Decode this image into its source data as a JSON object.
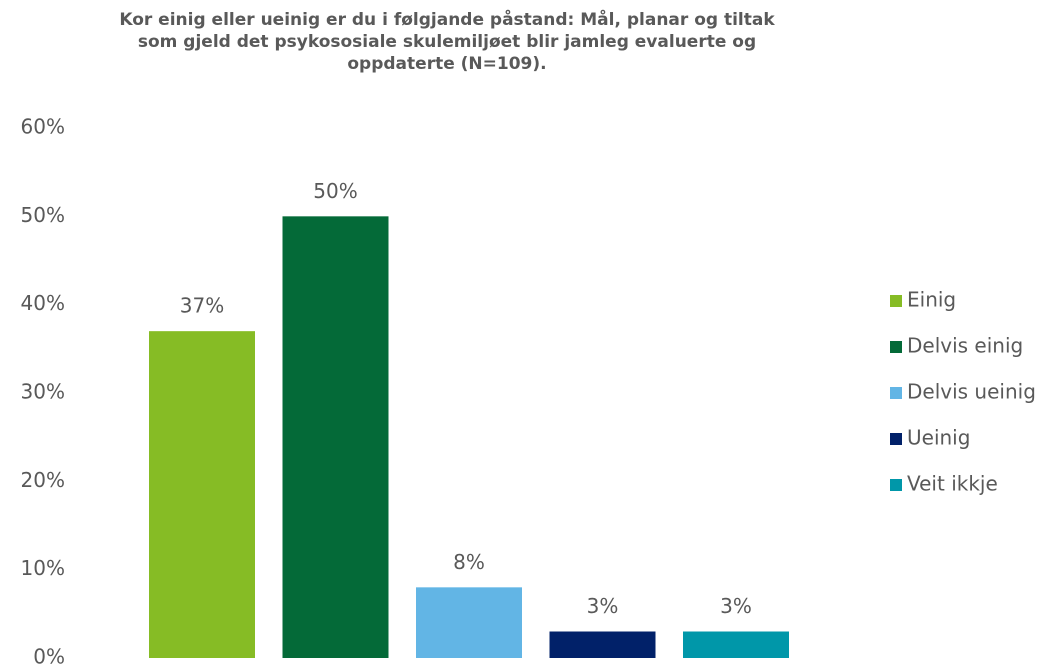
{
  "chart_data": {
    "type": "bar",
    "title": [
      "Kor einig eller ueinig er du i følgjande påstand: Mål, planar og tiltak",
      "som gjeld det psykososiale skulemiljøet blir jamleg evaluerte og",
      "oppdaterte (N=109)."
    ],
    "series": [
      {
        "name": "Einig",
        "color": "#86bc25",
        "values": [
          37
        ],
        "value_labels": [
          "37%"
        ]
      },
      {
        "name": "Delvis einig",
        "color": "#046a38",
        "values": [
          50
        ],
        "value_labels": [
          "50%"
        ]
      },
      {
        "name": "Delvis ueinig",
        "color": "#62b5e5",
        "values": [
          8
        ],
        "value_labels": [
          "8%"
        ]
      },
      {
        "name": "Ueinig",
        "color": "#012169",
        "values": [
          3
        ],
        "value_labels": [
          "3%"
        ]
      },
      {
        "name": "Veit ikkje",
        "color": "#0097a9",
        "values": [
          3
        ],
        "value_labels": [
          "3%"
        ]
      }
    ],
    "ylim": [
      0,
      60
    ],
    "yticks": [
      {
        "value": 0,
        "label": "0%"
      },
      {
        "value": 10,
        "label": "10%"
      },
      {
        "value": 20,
        "label": "20%"
      },
      {
        "value": 30,
        "label": "30%"
      },
      {
        "value": 40,
        "label": "40%"
      },
      {
        "value": 50,
        "label": "50%"
      },
      {
        "value": 60,
        "label": "60%"
      }
    ],
    "grid": false,
    "legend": "right"
  }
}
